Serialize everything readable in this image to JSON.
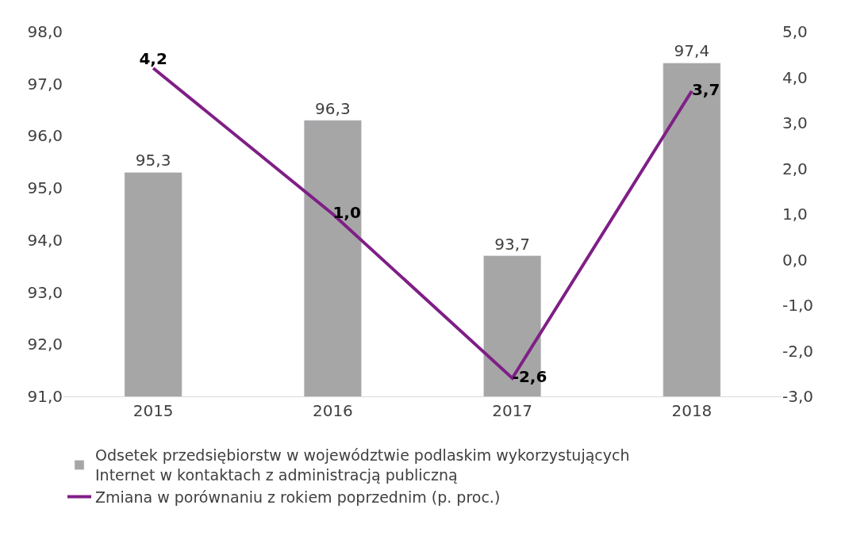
{
  "chart_data": {
    "type": "bar",
    "categories": [
      "2015",
      "2016",
      "2017",
      "2018"
    ],
    "series": [
      {
        "name": "Odsetek przedsiębiorstw w województwie podlaskim wykorzystujących Internet w kontaktach z administracją publiczną",
        "color": "#a6a6a6",
        "values": [
          95.3,
          96.3,
          93.7,
          97.4
        ],
        "value_labels": [
          "95,3",
          "96,3",
          "93,7",
          "97,4"
        ]
      },
      {
        "name": "Zmiana w porównaniu z rokiem poprzednim (p. proc.)",
        "type": "line",
        "axis": "y2",
        "color": "#7f1f86",
        "values": [
          4.2,
          1.0,
          -2.6,
          3.7
        ],
        "value_labels": [
          "4,2",
          "1,0",
          "-2,6",
          "3,7"
        ]
      }
    ],
    "ylim": [
      91,
      98
    ],
    "yticks": [
      {
        "value": 91,
        "label": "91,0"
      },
      {
        "value": 92,
        "label": "92,0"
      },
      {
        "value": 93,
        "label": "93,0"
      },
      {
        "value": 94,
        "label": "94,0"
      },
      {
        "value": 95,
        "label": "95,0"
      },
      {
        "value": 96,
        "label": "96,0"
      },
      {
        "value": 97,
        "label": "97,0"
      },
      {
        "value": 98,
        "label": "98,0"
      }
    ],
    "y2lim": [
      -3,
      5
    ],
    "y2ticks": [
      {
        "value": -3,
        "label": "-3,0"
      },
      {
        "value": -2,
        "label": "-2,0"
      },
      {
        "value": -1,
        "label": "-1,0"
      },
      {
        "value": 0,
        "label": "0,0"
      },
      {
        "value": 1,
        "label": "1,0"
      },
      {
        "value": 2,
        "label": "2,0"
      },
      {
        "value": 3,
        "label": "3,0"
      },
      {
        "value": 4,
        "label": "4,0"
      },
      {
        "value": 5,
        "label": "5,0"
      }
    ],
    "legend": "bottom",
    "marker": "none",
    "line_style": "solid"
  }
}
